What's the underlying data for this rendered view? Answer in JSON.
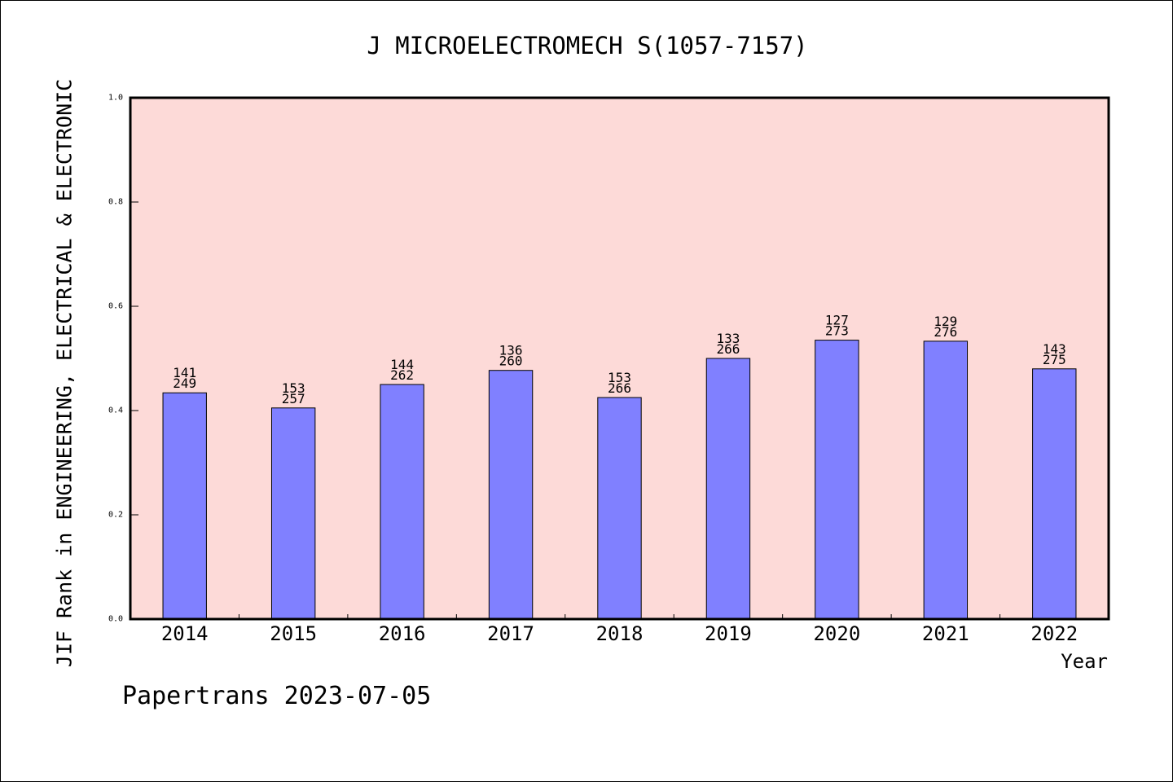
{
  "chart_data": {
    "type": "bar",
    "title": "J MICROELECTROMECH S(1057-7157)",
    "xlabel": "Year",
    "ylabel": "JIF Rank in ENGINEERING, ELECTRICAL & ELECTRONIC",
    "categories": [
      "2014",
      "2015",
      "2016",
      "2017",
      "2018",
      "2019",
      "2020",
      "2021",
      "2022"
    ],
    "values": [
      0.434,
      0.405,
      0.45,
      0.477,
      0.425,
      0.5,
      0.535,
      0.533,
      0.48
    ],
    "data_labels": [
      {
        "rank": "141",
        "total": "249"
      },
      {
        "rank": "153",
        "total": "257"
      },
      {
        "rank": "144",
        "total": "262"
      },
      {
        "rank": "136",
        "total": "260"
      },
      {
        "rank": "153",
        "total": "266"
      },
      {
        "rank": "133",
        "total": "266"
      },
      {
        "rank": "127",
        "total": "273"
      },
      {
        "rank": "129",
        "total": "276"
      },
      {
        "rank": "143",
        "total": "275"
      }
    ],
    "ylim": [
      0.0,
      1.0
    ],
    "ytick_labels": [
      "0.0",
      "0.2",
      "0.4",
      "0.6",
      "0.8",
      "1.0"
    ],
    "grid": false
  },
  "footer": {
    "text": "Papertrans 2023-07-05"
  },
  "colors": {
    "page_background": "#FFFFFF",
    "plot_background": "#FDDAD8",
    "bar_fill": "#8080FF",
    "bar_stroke": "#000000",
    "axis": "#000000"
  }
}
